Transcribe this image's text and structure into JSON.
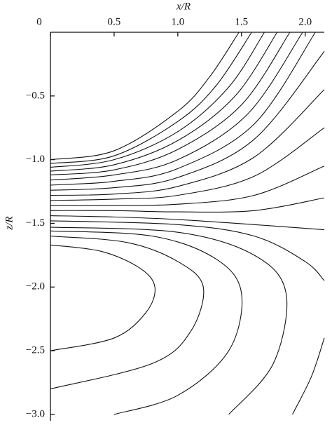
{
  "chart_data": {
    "type": "line",
    "x_label": "x/R",
    "y_label": "z/R",
    "xlim": [
      0,
      2.15
    ],
    "ylim": [
      -3.05,
      0
    ],
    "xticks": [
      0,
      0.5,
      {
        "value": 1,
        "label": "1.0"
      },
      1.5,
      {
        "value": 2,
        "label": "2.0"
      }
    ],
    "yticks": [
      {
        "value": -0.5,
        "label": "−0.5"
      },
      {
        "value": -1,
        "label": "−1.0"
      },
      {
        "value": -1.5,
        "label": "−1.5"
      },
      {
        "value": -2,
        "label": "−2.0"
      },
      {
        "value": -2.5,
        "label": "−2.5"
      },
      {
        "value": -3,
        "label": "−3.0"
      }
    ],
    "color": "#111111",
    "series": [
      {
        "x": [
          0,
          0.5,
          1.0,
          1.25,
          1.48
        ],
        "values": [
          -1.0,
          -0.93,
          -0.62,
          -0.35,
          0
        ]
      },
      {
        "x": [
          0,
          0.5,
          1.0,
          1.3,
          1.58
        ],
        "values": [
          -1.03,
          -0.97,
          -0.7,
          -0.42,
          0
        ]
      },
      {
        "x": [
          0,
          0.5,
          1.0,
          1.4,
          1.68
        ],
        "values": [
          -1.06,
          -1.0,
          -0.78,
          -0.43,
          0
        ]
      },
      {
        "x": [
          0,
          0.5,
          1.0,
          1.45,
          1.78
        ],
        "values": [
          -1.09,
          -1.04,
          -0.85,
          -0.5,
          0
        ]
      },
      {
        "x": [
          0,
          0.5,
          1.0,
          1.5,
          1.88
        ],
        "values": [
          -1.12,
          -1.08,
          -0.92,
          -0.57,
          0
        ]
      },
      {
        "x": [
          0,
          0.5,
          1.0,
          1.55,
          1.98
        ],
        "values": [
          -1.16,
          -1.12,
          -1.0,
          -0.64,
          0
        ]
      },
      {
        "x": [
          0,
          0.5,
          1.0,
          1.6,
          2.08
        ],
        "values": [
          -1.2,
          -1.17,
          -1.07,
          -0.72,
          0
        ]
      },
      {
        "x": [
          0,
          0.5,
          1.0,
          1.6,
          2.15
        ],
        "values": [
          -1.24,
          -1.22,
          -1.14,
          -0.84,
          -0.15
        ]
      },
      {
        "x": [
          0,
          0.5,
          1.0,
          1.6,
          2.15
        ],
        "values": [
          -1.28,
          -1.27,
          -1.21,
          -0.98,
          -0.45
        ]
      },
      {
        "x": [
          0,
          0.5,
          1.0,
          1.6,
          2.15
        ],
        "values": [
          -1.32,
          -1.31,
          -1.28,
          -1.13,
          -0.75
        ]
      },
      {
        "x": [
          0,
          0.5,
          1.0,
          1.6,
          2.15
        ],
        "values": [
          -1.36,
          -1.36,
          -1.35,
          -1.28,
          -1.05
        ]
      },
      {
        "x": [
          0,
          0.5,
          1.0,
          1.6,
          2.15
        ],
        "values": [
          -1.4,
          -1.4,
          -1.41,
          -1.4,
          -1.3
        ]
      },
      {
        "x": [
          0,
          0.5,
          1.0,
          1.6,
          2.15
        ],
        "values": [
          -1.44,
          -1.45,
          -1.47,
          -1.51,
          -1.55
        ]
      },
      {
        "x": [
          0,
          1.0,
          1.6,
          2.0,
          2.15
        ],
        "values": [
          -1.48,
          -1.51,
          -1.6,
          -1.8,
          -1.95
        ]
      },
      {
        "x": [
          0,
          0.4,
          0.7,
          0.82,
          0.75,
          0.5,
          0
        ],
        "values": [
          -1.67,
          -1.72,
          -1.85,
          -2.0,
          -2.2,
          -2.4,
          -2.5
        ]
      },
      {
        "x": [
          0,
          0.6,
          1.0,
          1.2,
          1.1,
          0.8,
          0
        ],
        "values": [
          -1.6,
          -1.65,
          -1.8,
          -2.0,
          -2.35,
          -2.6,
          -2.8
        ]
      },
      {
        "x": [
          0,
          0.8,
          1.3,
          1.5,
          1.4,
          1.0,
          0.5
        ],
        "values": [
          -1.56,
          -1.6,
          -1.78,
          -2.05,
          -2.5,
          -2.85,
          -3.0
        ]
      },
      {
        "x": [
          0,
          1.0,
          1.6,
          1.85,
          1.75,
          1.4
        ],
        "values": [
          -1.53,
          -1.57,
          -1.75,
          -2.05,
          -2.6,
          -3.0
        ]
      },
      {
        "x": [
          2.15,
          2.05,
          1.9
        ],
        "values": [
          -2.4,
          -2.7,
          -3.0
        ]
      }
    ]
  }
}
